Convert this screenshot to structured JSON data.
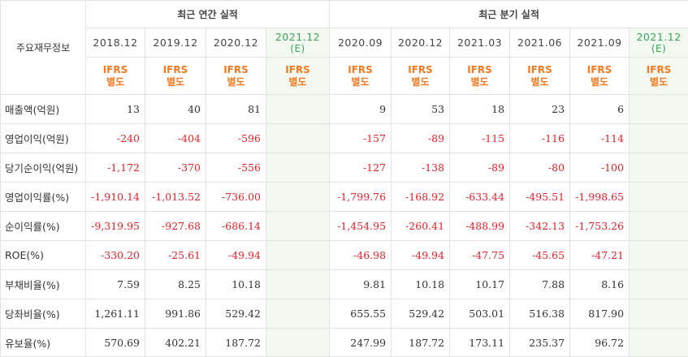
{
  "header": {
    "row_label_title": "주요재무정보",
    "annual_group": "최근 연간 실적",
    "quarterly_group": "최근 분기 실적"
  },
  "columns": [
    {
      "period": "2018.12",
      "estimate": "",
      "acct1": "IFRS",
      "acct2": "별도"
    },
    {
      "period": "2019.12",
      "estimate": "",
      "acct1": "IFRS",
      "acct2": "별도"
    },
    {
      "period": "2020.12",
      "estimate": "",
      "acct1": "IFRS",
      "acct2": "별도"
    },
    {
      "period": "2021.12",
      "estimate": "(E)",
      "acct1": "IFRS",
      "acct2": "별도"
    },
    {
      "period": "2020.09",
      "estimate": "",
      "acct1": "IFRS",
      "acct2": "별도"
    },
    {
      "period": "2020.12",
      "estimate": "",
      "acct1": "IFRS",
      "acct2": "별도"
    },
    {
      "period": "2021.03",
      "estimate": "",
      "acct1": "IFRS",
      "acct2": "별도"
    },
    {
      "period": "2021.06",
      "estimate": "",
      "acct1": "IFRS",
      "acct2": "별도"
    },
    {
      "period": "2021.09",
      "estimate": "",
      "acct1": "IFRS",
      "acct2": "별도"
    },
    {
      "period": "2021.12",
      "estimate": "(E)",
      "acct1": "IFRS",
      "acct2": "별도"
    }
  ],
  "rows": [
    {
      "label": "매출액(억원)",
      "values": [
        "13",
        "40",
        "81",
        "",
        "9",
        "53",
        "18",
        "23",
        "6",
        ""
      ]
    },
    {
      "label": "영업이익(억원)",
      "values": [
        "-240",
        "-404",
        "-596",
        "",
        "-157",
        "-89",
        "-115",
        "-116",
        "-114",
        ""
      ]
    },
    {
      "label": "당기순이익(억원)",
      "values": [
        "-1,172",
        "-370",
        "-556",
        "",
        "-127",
        "-138",
        "-89",
        "-80",
        "-100",
        ""
      ]
    },
    {
      "label": "영업이익률(%)",
      "values": [
        "-1,910.14",
        "-1,013.52",
        "-736.00",
        "",
        "-1,799.76",
        "-168.92",
        "-633.44",
        "-495.51",
        "-1,998.65",
        ""
      ]
    },
    {
      "label": "순이익률(%)",
      "values": [
        "-9,319.95",
        "-927.68",
        "-686.14",
        "",
        "-1,454.95",
        "-260.41",
        "-488.99",
        "-342.13",
        "-1,753.26",
        ""
      ]
    },
    {
      "label": "ROE(%)",
      "values": [
        "-330.20",
        "-25.61",
        "-49.94",
        "",
        "-46.98",
        "-49.94",
        "-47.75",
        "-45.65",
        "-47.21",
        ""
      ]
    },
    {
      "label": "부채비율(%)",
      "values": [
        "7.59",
        "8.25",
        "10.18",
        "",
        "9.81",
        "10.18",
        "10.17",
        "7.88",
        "8.16",
        ""
      ]
    },
    {
      "label": "당좌비율(%)",
      "values": [
        "1,261.11",
        "991.86",
        "529.42",
        "",
        "655.55",
        "529.42",
        "503.01",
        "516.38",
        "817.90",
        ""
      ]
    },
    {
      "label": "유보율(%)",
      "values": [
        "570.69",
        "402.21",
        "187.72",
        "",
        "247.99",
        "187.72",
        "173.11",
        "235.37",
        "96.72",
        ""
      ]
    }
  ],
  "colors": {
    "negative": "#e5222b",
    "accounting": "#f47920",
    "estimate": "#3aa55a",
    "estimate_bg": "#f3f9f1"
  }
}
